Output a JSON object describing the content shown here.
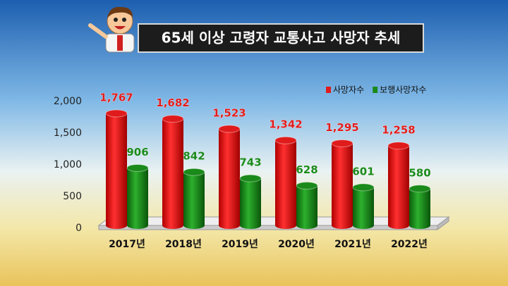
{
  "chart_data": {
    "type": "bar",
    "title": "65세 이상 고령자 교통사고 사망자 추세",
    "categories": [
      "2017년",
      "2018년",
      "2019년",
      "2020년",
      "2021년",
      "2022년"
    ],
    "series": [
      {
        "name": "사망자수",
        "color": "#e01b1b",
        "values": [
          1767,
          1682,
          1523,
          1342,
          1295,
          1258
        ],
        "value_labels": [
          "1,767",
          "1,682",
          "1,523",
          "1,342",
          "1,295",
          "1,258"
        ]
      },
      {
        "name": "보행사망자수",
        "color": "#1a8a1a",
        "values": [
          906,
          842,
          743,
          628,
          601,
          580
        ]
      }
    ],
    "ylim": [
      0,
      2000
    ],
    "yticks": [
      0,
      500,
      {
        "value": 1000,
        "label": "1,000"
      },
      {
        "value": 1500,
        "label": "1,500"
      },
      {
        "value": 2000,
        "label": "2,000"
      }
    ],
    "legend": "top-right"
  }
}
